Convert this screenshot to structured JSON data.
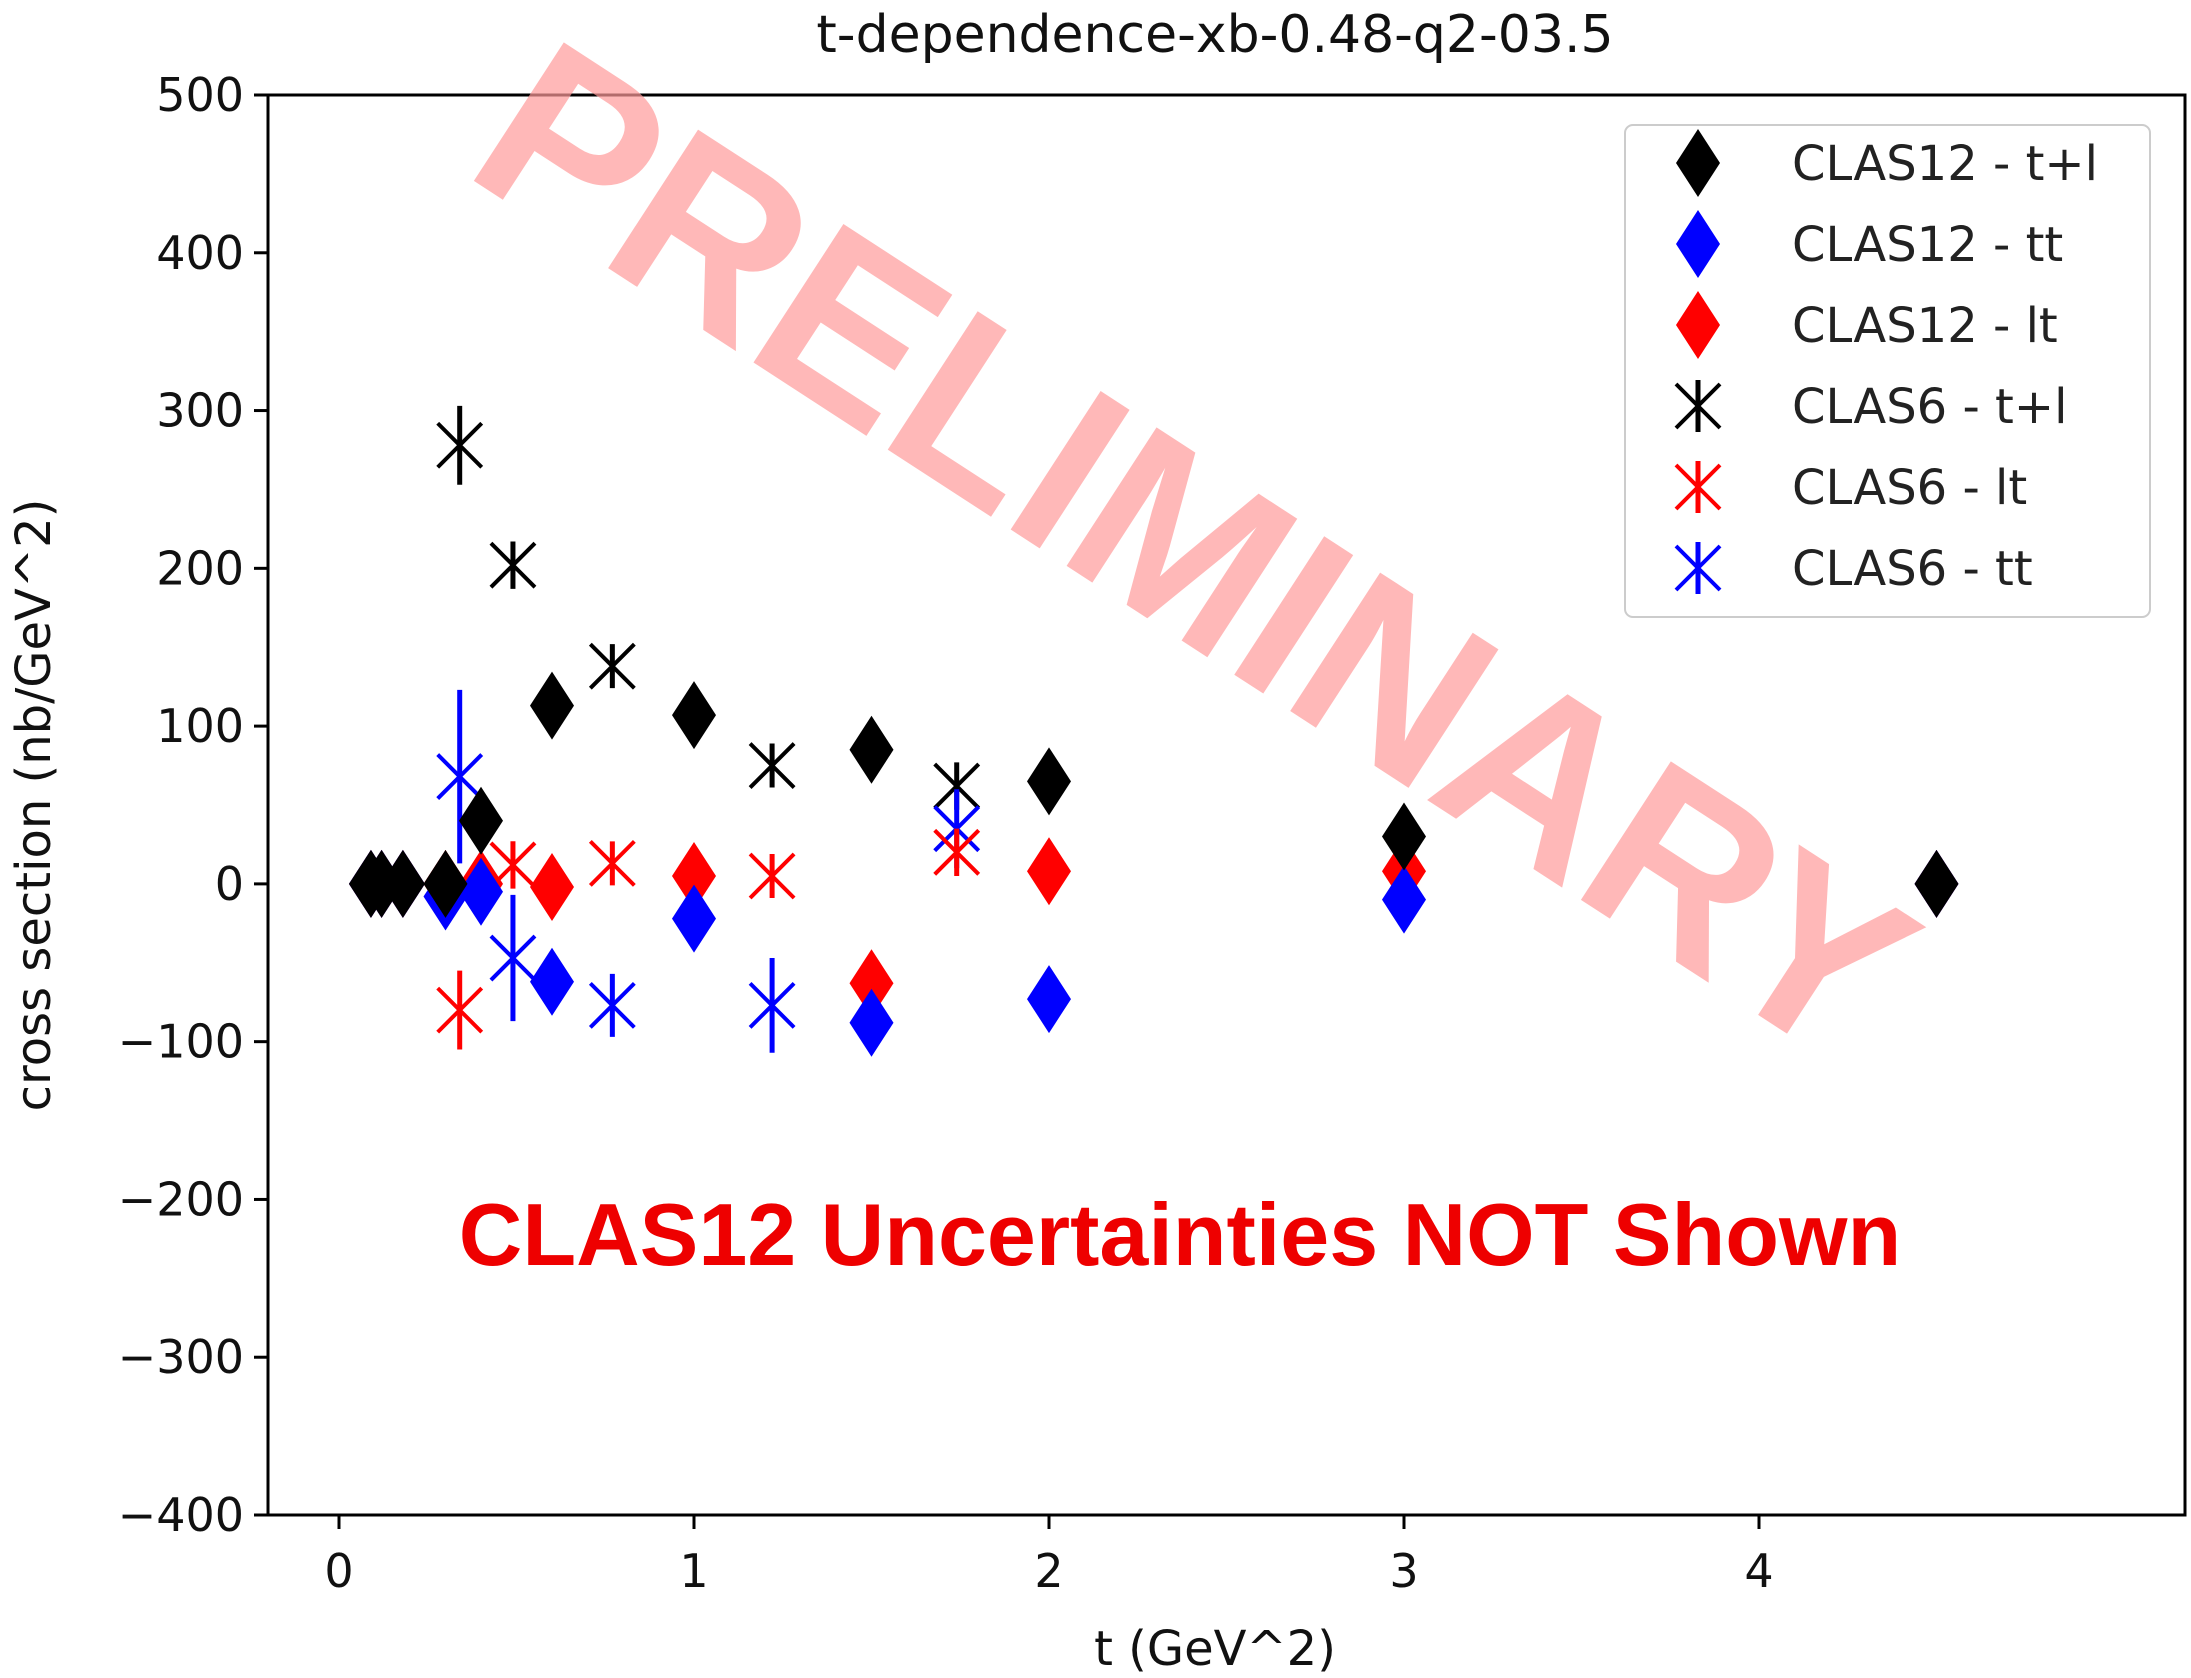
{
  "chart_data": {
    "type": "scatter",
    "title": "t-dependence-xb-0.48-q2-03.5",
    "xlabel": "t (GeV^2)",
    "ylabel": "cross section (nb/GeV^2)",
    "xlim": [
      -0.2,
      5.2
    ],
    "ylim": [
      -400,
      500
    ],
    "xticks": [
      0,
      1,
      2,
      3,
      4
    ],
    "xtick_labels": [
      "0",
      "1",
      "2",
      "3",
      "4"
    ],
    "yticks": [
      500,
      400,
      300,
      200,
      100,
      0,
      -100,
      -200,
      -300,
      -400
    ],
    "ytick_labels": [
      "500",
      "400",
      "300",
      "200",
      "100",
      "0",
      "−100",
      "−200",
      "−300",
      "−400"
    ],
    "grid": false,
    "legend_position": "top-right",
    "series": [
      {
        "name": "CLAS12 - t+l",
        "marker": "diamond",
        "color": "#000000",
        "points": [
          [
            0.09,
            0
          ],
          [
            0.12,
            0
          ],
          [
            0.18,
            0
          ],
          [
            0.3,
            0
          ],
          [
            0.4,
            40
          ],
          [
            0.6,
            113
          ],
          [
            1.0,
            107
          ],
          [
            1.5,
            85
          ],
          [
            2.0,
            65
          ],
          [
            3.0,
            30
          ],
          [
            4.5,
            0
          ]
        ]
      },
      {
        "name": "CLAS12 - tt",
        "marker": "diamond",
        "color": "#0000ff",
        "points": [
          [
            0.09,
            0
          ],
          [
            0.12,
            0
          ],
          [
            0.18,
            0
          ],
          [
            0.3,
            -8
          ],
          [
            0.4,
            -5
          ],
          [
            0.6,
            -62
          ],
          [
            1.0,
            -22
          ],
          [
            1.5,
            -88
          ],
          [
            2.0,
            -73
          ],
          [
            3.0,
            -10
          ],
          [
            4.5,
            0
          ]
        ]
      },
      {
        "name": "CLAS12 - lt",
        "marker": "diamond",
        "color": "#ff0000",
        "points": [
          [
            0.09,
            0
          ],
          [
            0.12,
            0
          ],
          [
            0.18,
            0
          ],
          [
            0.3,
            0
          ],
          [
            0.4,
            0
          ],
          [
            0.6,
            -2
          ],
          [
            1.0,
            5
          ],
          [
            1.5,
            -63
          ],
          [
            2.0,
            8
          ],
          [
            3.0,
            8
          ],
          [
            4.5,
            0
          ]
        ]
      },
      {
        "name": "CLAS6 - t+l",
        "marker": "x-bar",
        "color": "#000000",
        "points": [
          [
            0.34,
            278,
            25
          ],
          [
            0.49,
            202,
            15
          ],
          [
            0.77,
            138,
            10
          ],
          [
            1.22,
            75,
            10
          ],
          [
            1.74,
            62,
            15
          ]
        ]
      },
      {
        "name": "CLAS6 - lt",
        "marker": "x-bar",
        "color": "#ff0000",
        "points": [
          [
            0.34,
            -80,
            25
          ],
          [
            0.49,
            12,
            15
          ],
          [
            0.77,
            13,
            10
          ],
          [
            1.22,
            5,
            10
          ],
          [
            1.74,
            20,
            15
          ]
        ]
      },
      {
        "name": "CLAS6 - tt",
        "marker": "x-bar",
        "color": "#0000ff",
        "points": [
          [
            0.34,
            68,
            55
          ],
          [
            0.49,
            -47,
            40
          ],
          [
            0.77,
            -77,
            20
          ],
          [
            1.22,
            -77,
            30
          ],
          [
            1.74,
            35,
            25
          ]
        ]
      }
    ]
  },
  "annotations": {
    "watermark": "PRELIMINARY",
    "watermark_color": "#ff9a9a",
    "note": "CLAS12 Uncertainties NOT Shown",
    "note_color": "#ee0000"
  }
}
